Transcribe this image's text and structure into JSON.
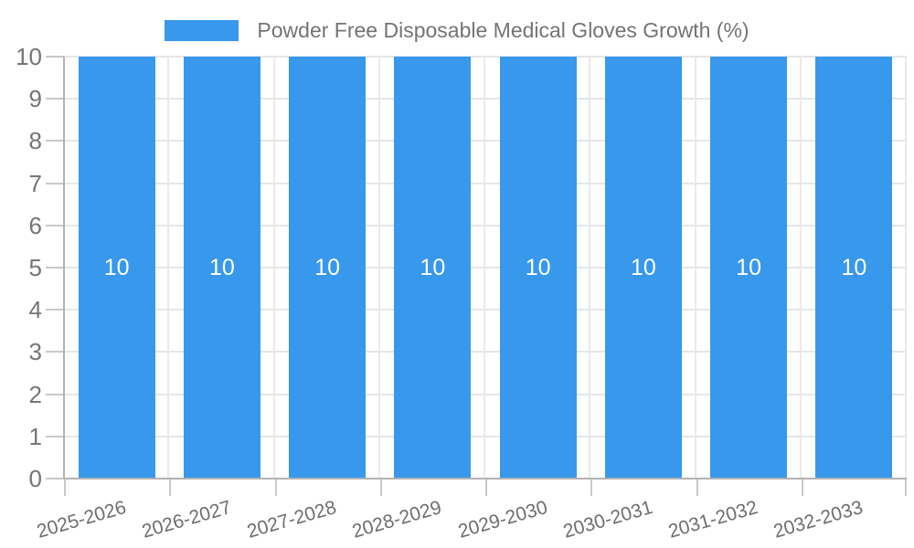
{
  "chart_data": {
    "type": "bar",
    "title": "Powder Free Disposable Medical Gloves Growth (%)",
    "categories": [
      "2025-2026",
      "2026-2027",
      "2027-2028",
      "2028-2029",
      "2029-2030",
      "2030-2031",
      "2031-2032",
      "2032-2033"
    ],
    "series": [
      {
        "name": "Powder Free Disposable Medical Gloves Growth (%)",
        "values": [
          10,
          10,
          10,
          10,
          10,
          10,
          10,
          10
        ]
      }
    ],
    "bar_value_labels": [
      "10",
      "10",
      "10",
      "10",
      "10",
      "10",
      "10",
      "10"
    ],
    "xlabel": "",
    "ylabel": "",
    "ylim": [
      0,
      10
    ],
    "y_ticks": [
      0,
      1,
      2,
      3,
      4,
      5,
      6,
      7,
      8,
      9,
      10
    ],
    "grid": true,
    "legend_position": "top",
    "x_label_rotation_deg": -16,
    "colors": {
      "bar": "#3898ec",
      "bar_label": "#ffffff",
      "title_text": "#747474",
      "y_axis_text": "#757575",
      "x_axis_text": "#6f6f6f",
      "grid": "#e6e6e6",
      "vertical_grid": "#eaeaea",
      "tick": "#c9c9c9",
      "axis_line": "#b2b2b2"
    }
  }
}
